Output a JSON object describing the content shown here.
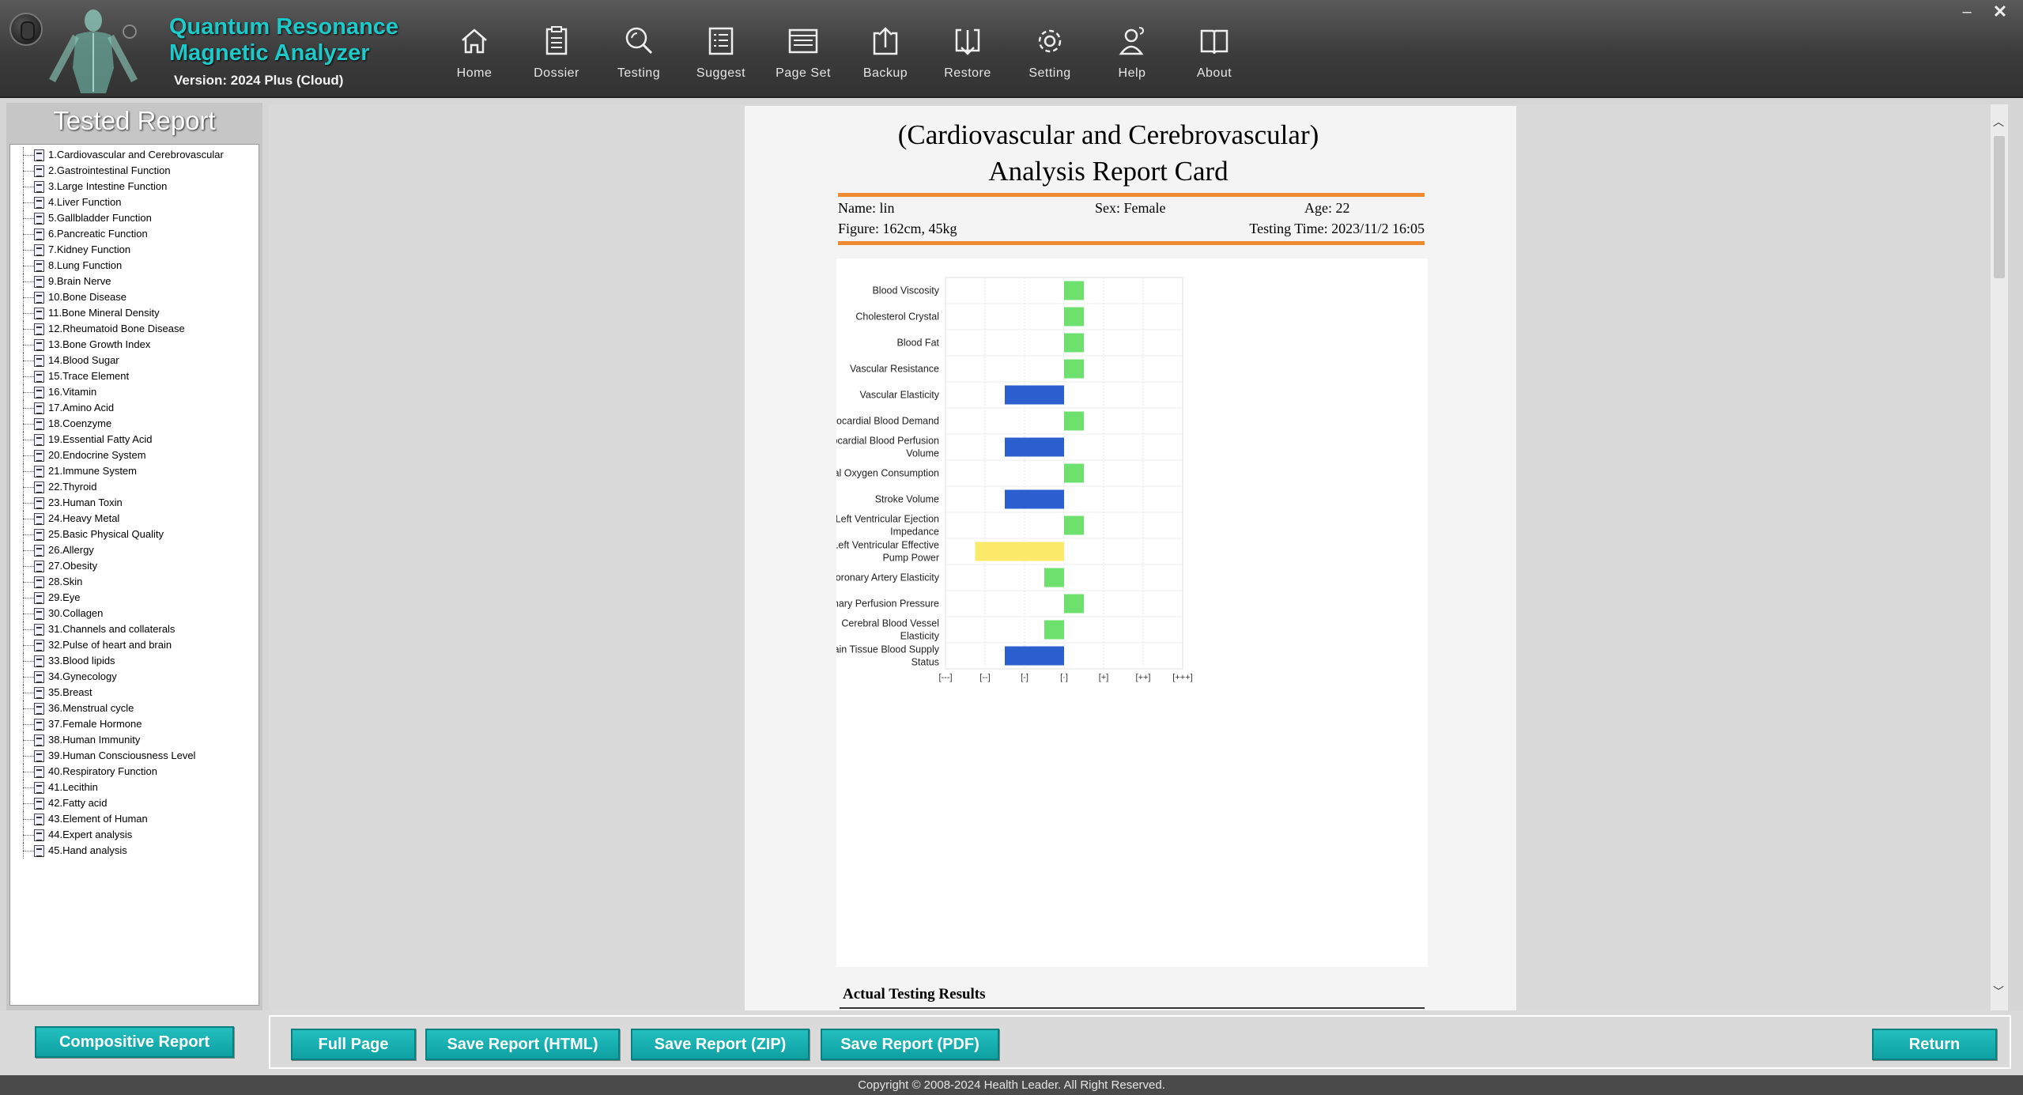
{
  "app": {
    "title_line1": "Quantum Resonance",
    "title_line2": "Magnetic Analyzer",
    "version": "Version: 2024 Plus (Cloud)"
  },
  "toolbar": [
    {
      "label": "Home",
      "icon": "home-icon"
    },
    {
      "label": "Dossier",
      "icon": "clipboard-icon"
    },
    {
      "label": "Testing",
      "icon": "magnifier-icon"
    },
    {
      "label": "Suggest",
      "icon": "list-icon"
    },
    {
      "label": "Page Set",
      "icon": "page-icon"
    },
    {
      "label": "Backup",
      "icon": "upload-icon"
    },
    {
      "label": "Restore",
      "icon": "download-icon"
    },
    {
      "label": "Setting",
      "icon": "gear-icon"
    },
    {
      "label": "Help",
      "icon": "help-person-icon"
    },
    {
      "label": "About",
      "icon": "book-icon"
    }
  ],
  "window": {
    "minimize": "–",
    "close": "✕"
  },
  "sidebar": {
    "title": "Tested Report",
    "items": [
      "1.Cardiovascular and Cerebrovascular",
      "2.Gastrointestinal Function",
      "3.Large Intestine Function",
      "4.Liver Function",
      "5.Gallbladder Function",
      "6.Pancreatic Function",
      "7.Kidney Function",
      "8.Lung Function",
      "9.Brain Nerve",
      "10.Bone Disease",
      "11.Bone Mineral Density",
      "12.Rheumatoid Bone Disease",
      "13.Bone Growth Index",
      "14.Blood Sugar",
      "15.Trace Element",
      "16.Vitamin",
      "17.Amino Acid",
      "18.Coenzyme",
      "19.Essential Fatty Acid",
      "20.Endocrine System",
      "21.Immune System",
      "22.Thyroid",
      "23.Human Toxin",
      "24.Heavy Metal",
      "25.Basic Physical Quality",
      "26.Allergy",
      "27.Obesity",
      "28.Skin",
      "29.Eye",
      "30.Collagen",
      "31.Channels and collaterals",
      "32.Pulse of heart and brain",
      "33.Blood lipids",
      "34.Gynecology",
      "35.Breast",
      "36.Menstrual cycle",
      "37.Female Hormone",
      "38.Human Immunity",
      "39.Human Consciousness Level",
      "40.Respiratory Function",
      "41.Lecithin",
      "42.Fatty acid",
      "43.Element of Human",
      "44.Expert analysis",
      "45.Hand analysis"
    ]
  },
  "report": {
    "title_line1": "(Cardiovascular and Cerebrovascular)",
    "title_line2": "Analysis Report Card",
    "name": "Name: lin",
    "sex": "Sex: Female",
    "age": "Age: 22",
    "figure": "Figure: 162cm, 45kg",
    "testing_time": "Testing Time: 2023/11/2 16:05",
    "actual_results_title": "Actual Testing Results"
  },
  "chart_data": {
    "type": "bar",
    "orientation": "horizontal",
    "x_ticks": [
      "[---]",
      "[--]",
      "[-]",
      "[·]",
      "[+]",
      "[++]",
      "[+++]"
    ],
    "colors": {
      "green": "#6ee06e",
      "blue": "#2b5fcf",
      "yellow": "#fbe96a"
    },
    "categories": [
      {
        "label": "Blood Viscosity",
        "start": 3,
        "end": 3.5,
        "color": "green"
      },
      {
        "label": "Cholesterol Crystal",
        "start": 3,
        "end": 3.5,
        "color": "green"
      },
      {
        "label": "Blood Fat",
        "start": 3,
        "end": 3.5,
        "color": "green"
      },
      {
        "label": "Vascular Resistance",
        "start": 3,
        "end": 3.5,
        "color": "green"
      },
      {
        "label": "Vascular Elasticity",
        "start": 1.5,
        "end": 3,
        "color": "blue"
      },
      {
        "label": "Myocardial Blood Demand",
        "start": 3,
        "end": 3.5,
        "color": "green"
      },
      {
        "label": "Myocardial Blood Perfusion Volume",
        "start": 1.5,
        "end": 3,
        "color": "blue"
      },
      {
        "label": "Myocardial Oxygen Consumption",
        "start": 3,
        "end": 3.5,
        "color": "green"
      },
      {
        "label": "Stroke Volume",
        "start": 1.5,
        "end": 3,
        "color": "blue"
      },
      {
        "label": "Left Ventricular Ejection Impedance",
        "start": 3,
        "end": 3.5,
        "color": "green"
      },
      {
        "label": "Left Ventricular Effective Pump Power",
        "start": 0.75,
        "end": 3,
        "color": "yellow"
      },
      {
        "label": "Coronary Artery Elasticity",
        "start": 2.5,
        "end": 3,
        "color": "green"
      },
      {
        "label": "Coronary Perfusion Pressure",
        "start": 3,
        "end": 3.5,
        "color": "green"
      },
      {
        "label": "Cerebral Blood Vessel Elasticity",
        "start": 2.5,
        "end": 3,
        "color": "green"
      },
      {
        "label": "Brain Tissue Blood Supply Status",
        "start": 1.5,
        "end": 3,
        "color": "blue"
      }
    ]
  },
  "buttons": {
    "compositive": "Compositive Report",
    "full_page": "Full Page",
    "save_html": "Save Report (HTML)",
    "save_zip": "Save Report (ZIP)",
    "save_pdf": "Save Report (PDF)",
    "return": "Return"
  },
  "footer": "Copyright © 2008-2024 Health Leader. All Right Reserved."
}
